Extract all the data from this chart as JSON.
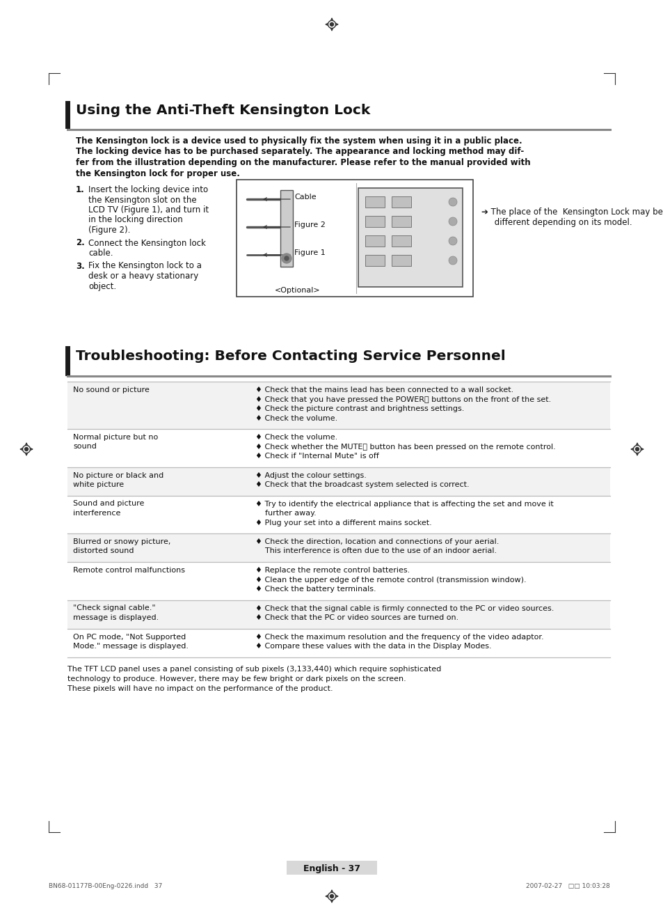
{
  "bg_color": "#ffffff",
  "title1": "Using the Anti-Theft Kensington Lock",
  "title2": "Troubleshooting: Before Contacting Service Personnel",
  "intro_text": "The Kensington lock is a device used to physically fix the system when using it in a public place.\nThe locking device has to be purchased separately. The appearance and locking method may dif-\nfer from the illustration depending on the manufacturer. Please refer to the manual provided with\nthe Kensington lock for proper use.",
  "steps": [
    "Insert the locking device into\nthe Kensington slot on the\nLCD TV (Figure 1), and turn it\nin the locking direction\n(Figure 2).",
    "Connect the Kensington lock\ncable.",
    "Fix the Kensington lock to a\ndesk or a heavy stationary\nobject."
  ],
  "troubleshoot_rows": [
    {
      "problem": "No sound or picture",
      "bg": "#f2f2f2",
      "solutions": [
        "♦ Check that the mains lead has been connected to a wall socket.",
        "♦ Check that you have pressed the POWER⏻ buttons on the front of the set.",
        "♦ Check the picture contrast and brightness settings.",
        "♦ Check the volume."
      ]
    },
    {
      "problem": "Normal picture but no\nsound",
      "bg": "#ffffff",
      "solutions": [
        "♦ Check the volume.",
        "♦ Check whether the MUTE🔇 button has been pressed on the remote control.",
        "♦ Check if \"Internal Mute\" is off"
      ]
    },
    {
      "problem": "No picture or black and\nwhite picture",
      "bg": "#f2f2f2",
      "solutions": [
        "♦ Adjust the colour settings.",
        "♦ Check that the broadcast system selected is correct."
      ]
    },
    {
      "problem": "Sound and picture\ninterference",
      "bg": "#ffffff",
      "solutions": [
        "♦ Try to identify the electrical appliance that is affecting the set and move it\n    further away.",
        "♦ Plug your set into a different mains socket."
      ]
    },
    {
      "problem": "Blurred or snowy picture,\ndistorted sound",
      "bg": "#f2f2f2",
      "solutions": [
        "♦ Check the direction, location and connections of your aerial.",
        "    This interference is often due to the use of an indoor aerial."
      ]
    },
    {
      "problem": "Remote control malfunctions",
      "bg": "#ffffff",
      "solutions": [
        "♦ Replace the remote control batteries.",
        "♦ Clean the upper edge of the remote control (transmission window).",
        "♦ Check the battery terminals."
      ]
    },
    {
      "problem": "\"Check signal cable.\"\nmessage is displayed.",
      "bg": "#f2f2f2",
      "solutions": [
        "♦ Check that the signal cable is firmly connected to the PC or video sources.",
        "♦ Check that the PC or video sources are turned on."
      ]
    },
    {
      "problem": "On PC mode, \"Not Supported\nMode.\" message is displayed.",
      "bg": "#ffffff",
      "solutions": [
        "♦ Check the maximum resolution and the frequency of the video adaptor.",
        "♦ Compare these values with the data in the Display Modes."
      ]
    }
  ],
  "footer_text": "The TFT LCD panel uses a panel consisting of sub pixels (3,133,440) which require sophisticated\ntechnology to produce. However, there may be few bright or dark pixels on the screen.\nThese pixels will have no impact on the performance of the product.",
  "page_label": "English - 37",
  "bottom_text_left": "BN68-01177B-00Eng-0226.indd   37",
  "bottom_text_right": "2007-02-27   □□ 10:03:28"
}
